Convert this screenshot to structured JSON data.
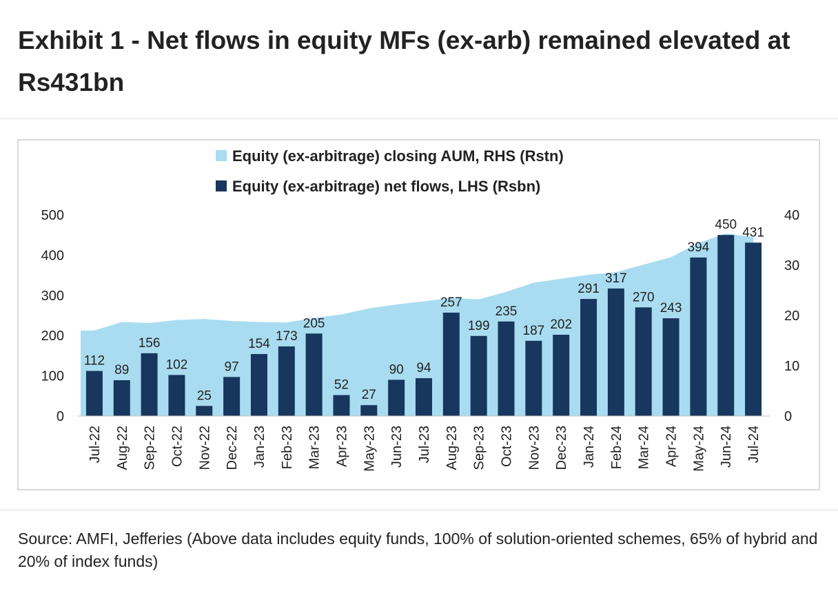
{
  "title": "Exhibit 1 - Net flows in equity MFs (ex-arb) remained elevated at Rs431bn",
  "source": "Source: AMFI, Jefferies (Above data includes equity funds, 100% of solution-oriented schemes, 65% of hybrid and 20% of index funds)",
  "colors": {
    "bar": "#17375e",
    "area": "#a9dcf0"
  },
  "chart_data": {
    "type": "bar",
    "categories": [
      "Jul-22",
      "Aug-22",
      "Sep-22",
      "Oct-22",
      "Nov-22",
      "Dec-22",
      "Jan-23",
      "Feb-23",
      "Mar-23",
      "Apr-23",
      "May-23",
      "Jun-23",
      "Jul-23",
      "Aug-23",
      "Sep-23",
      "Oct-23",
      "Nov-23",
      "Dec-23",
      "Jan-24",
      "Feb-24",
      "Mar-24",
      "Apr-24",
      "May-24",
      "Jun-24",
      "Jul-24"
    ],
    "series": [
      {
        "name": "Equity (ex-arbitrage) net flows, LHS (Rsbn)",
        "type": "bar",
        "axis": "left",
        "values": [
          112,
          89,
          156,
          102,
          25,
          97,
          154,
          173,
          205,
          52,
          27,
          90,
          94,
          257,
          199,
          235,
          187,
          202,
          291,
          317,
          270,
          243,
          394,
          450,
          431
        ]
      },
      {
        "name": "Equity (ex-arbitrage) closing AUM, RHS (Rstn)",
        "type": "area",
        "axis": "right",
        "values": [
          17.0,
          18.7,
          18.5,
          19.1,
          19.3,
          18.9,
          18.7,
          18.6,
          19.5,
          20.2,
          21.4,
          22.2,
          22.8,
          23.5,
          23.2,
          24.7,
          26.5,
          27.3,
          28.1,
          28.6,
          30.1,
          31.6,
          34.4,
          36.3,
          35.6
        ]
      }
    ],
    "ylim_left": [
      0,
      500
    ],
    "yticks_left": [
      0,
      100,
      200,
      300,
      400,
      500
    ],
    "ylim_right": [
      0,
      40
    ],
    "yticks_right": [
      0,
      10,
      20,
      30,
      40
    ],
    "legend": "top",
    "grid": false
  }
}
